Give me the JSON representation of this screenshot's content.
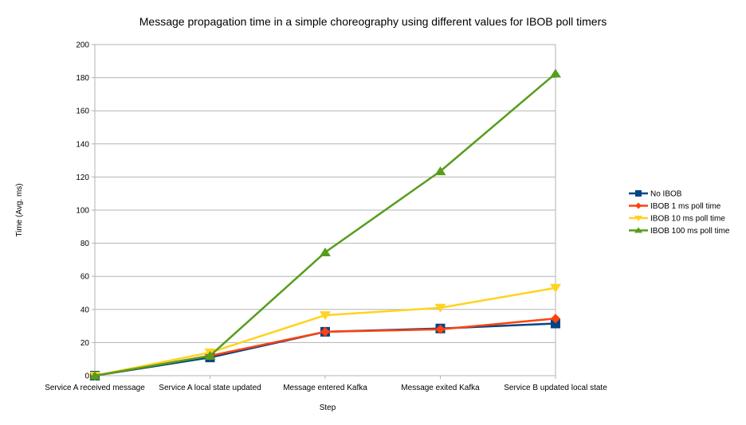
{
  "chart_data": {
    "type": "line",
    "title": "Message propagation time in a simple choreography using different values for IBOB poll timers",
    "xlabel": "Step",
    "ylabel": "Time (Avg. ms)",
    "ylim": [
      0,
      200
    ],
    "yticks": [
      0,
      20,
      40,
      60,
      80,
      100,
      120,
      140,
      160,
      180,
      200
    ],
    "grid": "horizontal",
    "legend_position": "right",
    "categories": [
      "Service A received message",
      "Service A local state updated",
      "Message entered Kafka",
      "Message exited Kafka",
      "Service B updated local state"
    ],
    "series": [
      {
        "name": "No IBOB",
        "color": "#004586",
        "marker": "square",
        "values": [
          0,
          11,
          26.5,
          28.5,
          31.5
        ]
      },
      {
        "name": "IBOB 1 ms poll time",
        "color": "#ff420e",
        "marker": "diamond",
        "values": [
          0,
          12,
          26.5,
          28,
          34.5
        ]
      },
      {
        "name": "IBOB 10 ms poll time",
        "color": "#ffd320",
        "marker": "triangle-down",
        "values": [
          0,
          14,
          36.5,
          41,
          53
        ]
      },
      {
        "name": "IBOB 100 ms poll time",
        "color": "#579d1c",
        "marker": "triangle-up",
        "values": [
          0,
          12,
          74.5,
          123.5,
          182.5
        ]
      }
    ]
  }
}
